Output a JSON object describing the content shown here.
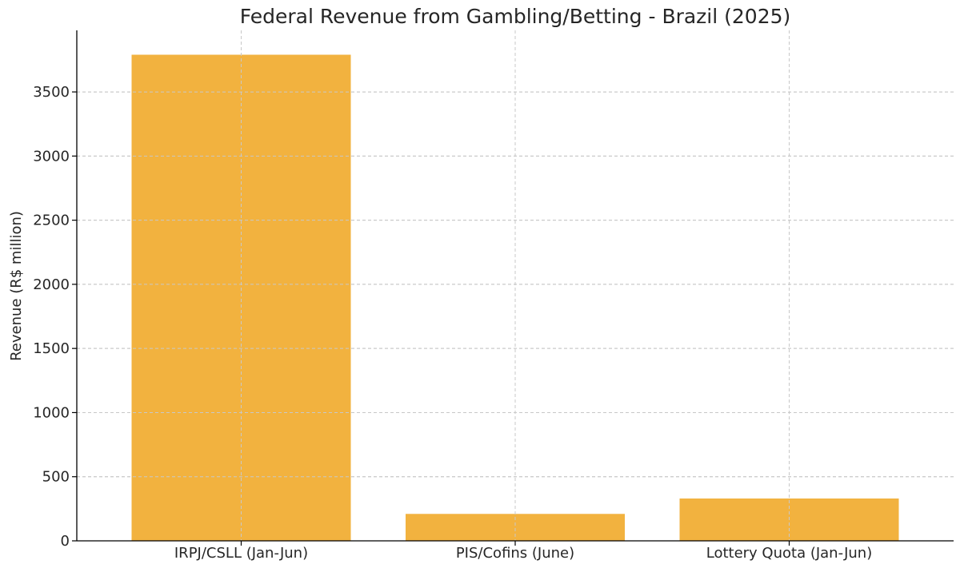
{
  "chart_data": {
    "type": "bar",
    "title": "Federal Revenue from Gambling/Betting - Brazil (2025)",
    "xlabel": "",
    "ylabel": "Revenue (R$ million)",
    "categories": [
      "IRPJ/CSLL (Jan-Jun)",
      "PIS/Cofins (June)",
      "Lottery Quota (Jan-Jun)"
    ],
    "values": [
      3790,
      210,
      330
    ],
    "ylim": [
      0,
      3980
    ],
    "yticks": [
      0,
      500,
      1000,
      1500,
      2000,
      2500,
      3000,
      3500
    ],
    "grid": true,
    "legend": "none",
    "colors": {
      "bar": "#F2B23F",
      "grid": "#c8c8c8",
      "axis": "#000000",
      "text": "#262626"
    }
  }
}
